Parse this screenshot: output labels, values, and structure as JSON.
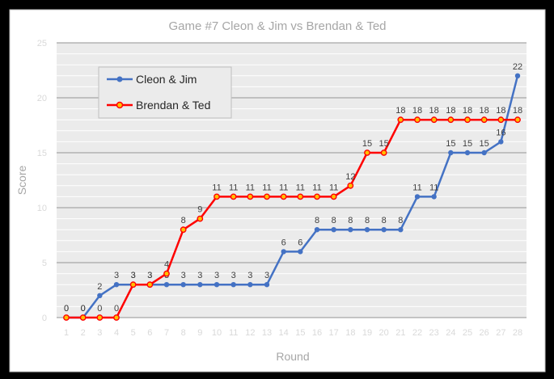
{
  "chart_data": {
    "type": "line",
    "title": "Game #7    Cleon & Jim vs Brendan & Ted",
    "xlabel": "Round",
    "ylabel": "Score",
    "ylim": [
      0,
      25
    ],
    "yticks": [
      "0",
      "5",
      "10",
      "15",
      "20",
      "25"
    ],
    "x": [
      "1",
      "2",
      "3",
      "4",
      "5",
      "6",
      "7",
      "8",
      "9",
      "10",
      "11",
      "12",
      "13",
      "14",
      "15",
      "16",
      "17",
      "18",
      "19",
      "20",
      "21",
      "22",
      "23",
      "24",
      "25",
      "26",
      "27",
      "28"
    ],
    "grid": true,
    "legend_position": "top-left",
    "series": [
      {
        "name": "Cleon & Jim",
        "color": "#4472c4",
        "values": [
          0,
          0,
          2,
          3,
          3,
          3,
          3,
          3,
          3,
          3,
          3,
          3,
          3,
          6,
          6,
          8,
          8,
          8,
          8,
          8,
          8,
          11,
          11,
          15,
          15,
          15,
          16,
          22
        ],
        "labels": [
          "0",
          "0",
          "2",
          "3",
          "3",
          "3",
          "3",
          "3",
          "3",
          "3",
          "3",
          "3",
          "3",
          "6",
          "6",
          "8",
          "8",
          "8",
          "8",
          "8",
          "8",
          "11",
          "11",
          "15",
          "15",
          "15",
          "16",
          "22"
        ]
      },
      {
        "name": "Brendan & Ted",
        "color": "#ff0000",
        "values": [
          0,
          0,
          0,
          0,
          3,
          3,
          4,
          8,
          9,
          11,
          11,
          11,
          11,
          11,
          11,
          11,
          11,
          12,
          15,
          15,
          18,
          18,
          18,
          18,
          18,
          18,
          18,
          18
        ],
        "labels": [
          "0",
          "0",
          "0",
          "0",
          "3",
          "3",
          "4",
          "8",
          "9",
          "11",
          "11",
          "11",
          "11",
          "11",
          "11",
          "11",
          "11",
          "12",
          "15",
          "15",
          "18",
          "18",
          "18",
          "18",
          "18",
          "18",
          "18",
          "18"
        ]
      }
    ]
  }
}
